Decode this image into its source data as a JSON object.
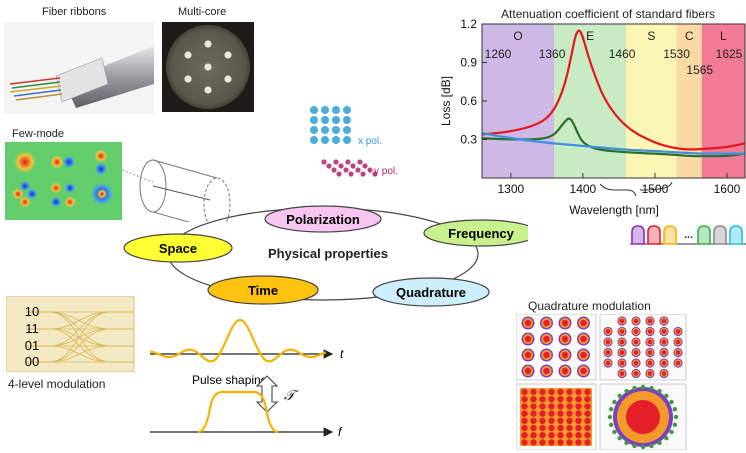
{
  "top_left": {
    "fiber_ribbons_label": "Fiber ribbons",
    "multicore_label": "Multi-core",
    "fewmode_label": "Few-mode"
  },
  "polarization_inset": {
    "x_label": "x pol.",
    "y_label": "y pol.",
    "x_color": "#2a9fd6",
    "y_color": "#b0246a"
  },
  "center": {
    "title": "Physical properties",
    "nodes": [
      {
        "key": "polarization",
        "label": "Polarization",
        "color": "#f7c6f0"
      },
      {
        "key": "frequency",
        "label": "Frequency",
        "color": "#c8f08c"
      },
      {
        "key": "space",
        "label": "Space",
        "color": "#ffff33"
      },
      {
        "key": "time",
        "label": "Time",
        "color": "#ffc20e"
      },
      {
        "key": "quadrature",
        "label": "Quadrature",
        "color": "#cdeffc"
      }
    ]
  },
  "eye": {
    "levels": [
      "10",
      "11",
      "01",
      "00"
    ],
    "caption": "4-level modulation"
  },
  "pulse": {
    "t_label": "t",
    "f_label": "f",
    "caption": "Pulse shaping",
    "transform_symbol": "𝒯"
  },
  "quad": {
    "caption": "Quadrature modulation"
  },
  "chart_data": {
    "type": "line",
    "title": "Attenuation  coefficient of standard fibers",
    "xlabel": "Wavelength [nm]",
    "ylabel": "Loss [dB]",
    "xlim": [
      1260,
      1625
    ],
    "ylim": [
      0.0,
      1.2
    ],
    "xticks": [
      1300,
      1400,
      1500,
      1600
    ],
    "yticks": [
      0.3,
      0.6,
      0.9,
      1.2
    ],
    "grid": false,
    "bands": [
      {
        "name": "O",
        "start": 1260,
        "end": 1360,
        "color": "#cdb8e6"
      },
      {
        "name": "E",
        "start": 1360,
        "end": 1460,
        "color": "#c9ebc4"
      },
      {
        "name": "S",
        "start": 1460,
        "end": 1530,
        "color": "#fbf6b4"
      },
      {
        "name": "C",
        "start": 1530,
        "end": 1565,
        "color": "#fbd9a4"
      },
      {
        "name": "L",
        "start": 1565,
        "end": 1625,
        "color": "#f27a97"
      }
    ],
    "boundary_labels": [
      "1260",
      "1360",
      "1460",
      "1530",
      "1565",
      "1625"
    ],
    "series": [
      {
        "color": "#e8161b",
        "x": [
          1260,
          1300,
          1340,
          1360,
          1375,
          1385,
          1390,
          1395,
          1400,
          1410,
          1430,
          1460,
          1500,
          1530,
          1550,
          1575,
          1600,
          1625
        ],
        "y": [
          0.34,
          0.36,
          0.42,
          0.52,
          0.72,
          0.98,
          1.12,
          1.16,
          1.1,
          0.9,
          0.6,
          0.39,
          0.27,
          0.23,
          0.22,
          0.23,
          0.24,
          0.27
        ]
      },
      {
        "color": "#2a6e2a",
        "x": [
          1260,
          1300,
          1340,
          1360,
          1372,
          1380,
          1385,
          1392,
          1400,
          1420,
          1460,
          1500,
          1530,
          1550,
          1575,
          1600,
          1625
        ],
        "y": [
          0.31,
          0.3,
          0.3,
          0.33,
          0.42,
          0.47,
          0.45,
          0.36,
          0.27,
          0.22,
          0.2,
          0.19,
          0.18,
          0.17,
          0.17,
          0.17,
          0.19
        ]
      },
      {
        "color": "#3a8fe0",
        "x": [
          1260,
          1300,
          1340,
          1380,
          1420,
          1460,
          1500,
          1530,
          1560,
          1590,
          1625
        ],
        "y": [
          0.35,
          0.31,
          0.28,
          0.26,
          0.24,
          0.22,
          0.21,
          0.2,
          0.19,
          0.19,
          0.19
        ]
      }
    ]
  },
  "wdm": {
    "ellipsis": "...",
    "colors": [
      "#8b2fbf",
      "#e0213a",
      "#ffb000",
      "#ffffff",
      "#33b34a",
      "#8c8c8c",
      "#22c0e8"
    ]
  }
}
